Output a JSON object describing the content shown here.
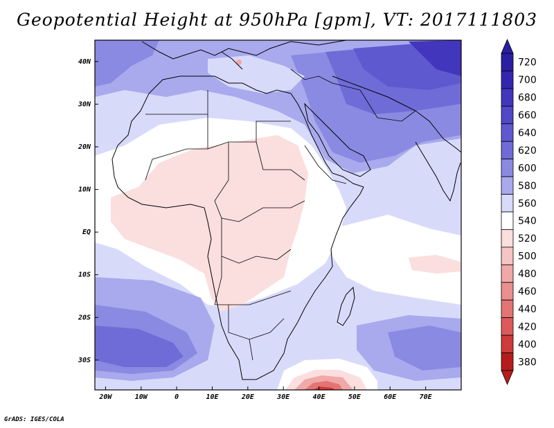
{
  "title": "Geopotential Height at 950hPa [gpm], VT: 2017111803",
  "footer": "GrADS: IGES/COLA",
  "map": {
    "variable": "Geopotential Height",
    "level": "950hPa",
    "units": "gpm",
    "valid_time": "2017111803",
    "lon_range": [
      -23,
      80
    ],
    "lat_range": [
      -37,
      45
    ],
    "lon_ticks": [
      {
        "value": -20,
        "label": "20W"
      },
      {
        "value": -10,
        "label": "10W"
      },
      {
        "value": 0,
        "label": "0"
      },
      {
        "value": 10,
        "label": "10E"
      },
      {
        "value": 20,
        "label": "20E"
      },
      {
        "value": 30,
        "label": "30E"
      },
      {
        "value": 40,
        "label": "40E"
      },
      {
        "value": 50,
        "label": "50E"
      },
      {
        "value": 60,
        "label": "60E"
      },
      {
        "value": 70,
        "label": "70E"
      }
    ],
    "lat_ticks": [
      {
        "value": 40,
        "label": "40N"
      },
      {
        "value": 30,
        "label": "30N"
      },
      {
        "value": 20,
        "label": "20N"
      },
      {
        "value": 10,
        "label": "10N"
      },
      {
        "value": 0,
        "label": "EQ"
      },
      {
        "value": -10,
        "label": "10S"
      },
      {
        "value": -20,
        "label": "20S"
      },
      {
        "value": -30,
        "label": "30S"
      }
    ]
  },
  "colorbar": {
    "levels": [
      {
        "value": "720",
        "color": "#2a1fa0"
      },
      {
        "value": "700",
        "color": "#3526b0"
      },
      {
        "value": "680",
        "color": "#4236bd"
      },
      {
        "value": "660",
        "color": "#5048c6"
      },
      {
        "value": "640",
        "color": "#5f59cf"
      },
      {
        "value": "620",
        "color": "#6f6cd8"
      },
      {
        "value": "600",
        "color": "#8a8ae2"
      },
      {
        "value": "580",
        "color": "#a8aaed"
      },
      {
        "value": "560",
        "color": "#d8dafa"
      },
      {
        "value": "540",
        "color": "#ffffff"
      },
      {
        "value": "520",
        "color": "#fbdede"
      },
      {
        "value": "500",
        "color": "#f6c4c4"
      },
      {
        "value": "480",
        "color": "#f0a8a8"
      },
      {
        "value": "460",
        "color": "#ea8e8e"
      },
      {
        "value": "440",
        "color": "#e47474"
      },
      {
        "value": "420",
        "color": "#dc5a5a"
      },
      {
        "value": "400",
        "color": "#cf3a3a"
      },
      {
        "value": "380",
        "color": "#b71c1c"
      }
    ]
  }
}
